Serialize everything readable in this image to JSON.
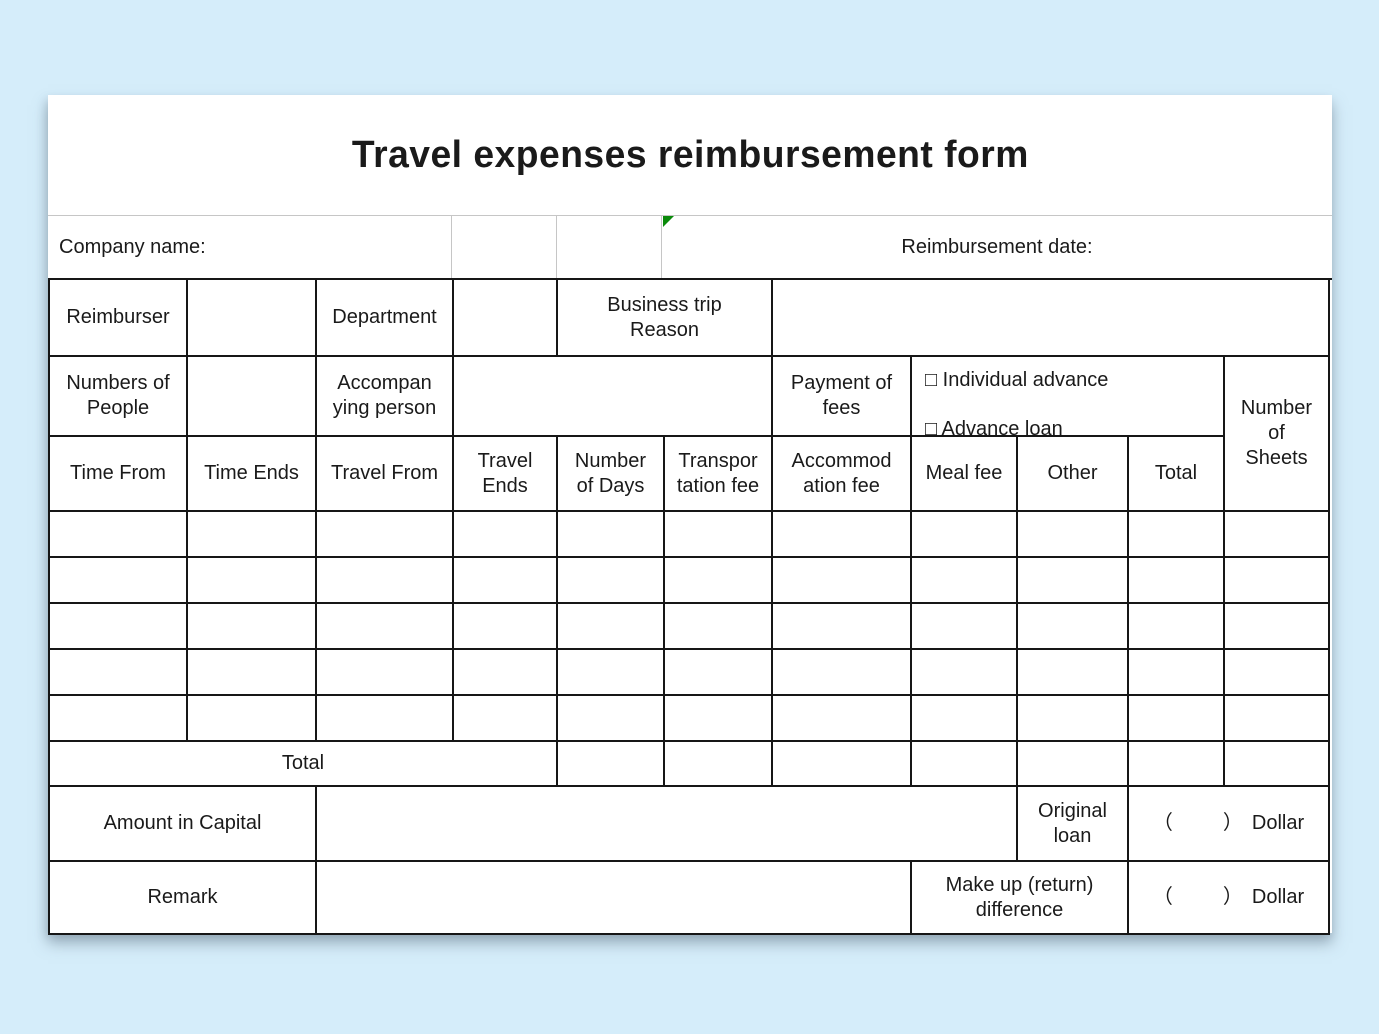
{
  "page": {
    "background": "#d5edfa"
  },
  "form": {
    "title": "Travel expenses reimbursement form",
    "company_row": {
      "company_label": "Company name:",
      "date_label": "Reimbursement date:"
    },
    "info": {
      "reimburser_label": "Reimburser",
      "department_label": "Department",
      "trip_reason_label": "Business trip\nReason",
      "people_label": "Numbers of\nPeople",
      "accompanying_label": "Accompan\nying person",
      "payment_label": "Payment of\nfees",
      "checkbox_individual": "□ Individual advance",
      "checkbox_advance": "□  Advance loan",
      "sheets_label": "Number\nof\nSheets"
    },
    "columns": [
      "Time From",
      "Time Ends",
      "Travel From",
      "Travel\nEnds",
      "Number\nof Days",
      "Transpor\ntation fee",
      "Accommod\nation fee",
      "Meal fee",
      "Other",
      "Total"
    ],
    "empty_rows": 5,
    "total_row": {
      "label": "Total"
    },
    "amount_row": {
      "label": "Amount in Capital",
      "loan_label": "Original\nloan",
      "open": "（",
      "close": "）",
      "unit": "Dollar"
    },
    "remark_row": {
      "label": "Remark",
      "diff_label": "Make up (return)\ndifference",
      "open": "（",
      "close": "）",
      "unit": "Dollar"
    },
    "colors": {
      "flag": "#0a8a0a",
      "border": "#161616",
      "light_border": "#c6c6c6"
    }
  }
}
